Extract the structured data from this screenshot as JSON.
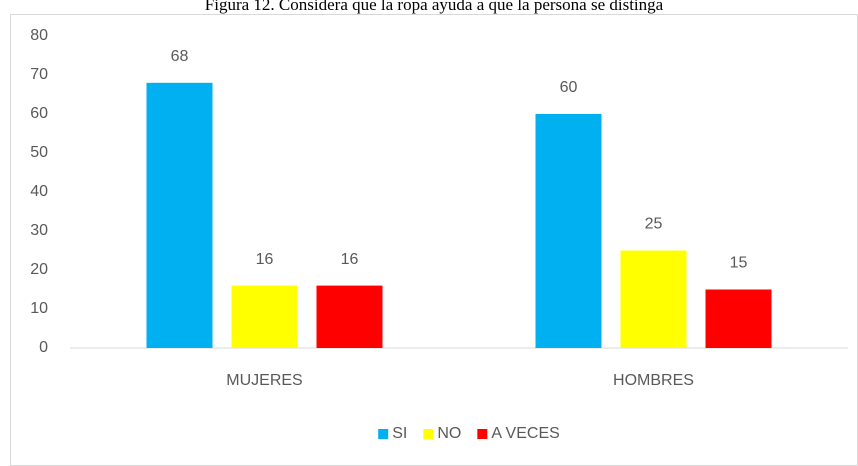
{
  "chart_data": {
    "type": "bar",
    "title": "Figura 12. Considera que la ropa ayuda a que la persona se distinga",
    "categories": [
      "MUJERES",
      "HOMBRES"
    ],
    "series": [
      {
        "name": "SI",
        "color": "#00B0F0",
        "values": [
          68,
          60
        ]
      },
      {
        "name": "NO",
        "color": "#FFFF00",
        "values": [
          16,
          25
        ]
      },
      {
        "name": "A VECES",
        "color": "#FF0000",
        "values": [
          16,
          15
        ]
      }
    ],
    "ylim": [
      0,
      80
    ],
    "yticks": [
      0,
      10,
      20,
      30,
      40,
      50,
      60,
      70,
      80
    ],
    "grid": false,
    "legend": "bottom"
  }
}
